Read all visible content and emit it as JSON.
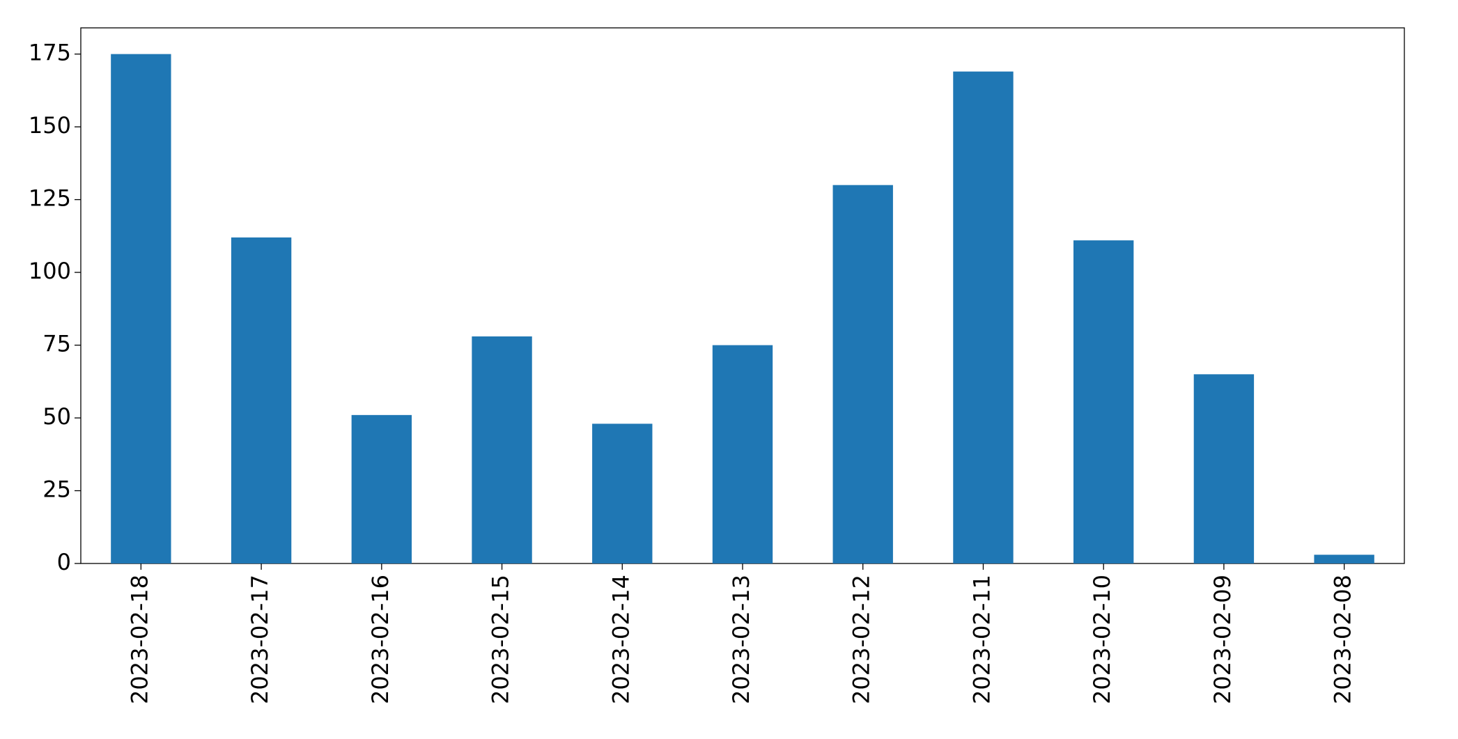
{
  "chart_data": {
    "type": "bar",
    "categories": [
      "2023-02-18",
      "2023-02-17",
      "2023-02-16",
      "2023-02-15",
      "2023-02-14",
      "2023-02-13",
      "2023-02-12",
      "2023-02-11",
      "2023-02-10",
      "2023-02-09",
      "2023-02-08"
    ],
    "values": [
      175,
      112,
      51,
      78,
      48,
      75,
      130,
      169,
      111,
      65,
      3
    ],
    "color": "#1f77b4",
    "ylim": [
      0,
      184
    ],
    "yticks": [
      0,
      25,
      50,
      75,
      100,
      125,
      150,
      175
    ]
  }
}
